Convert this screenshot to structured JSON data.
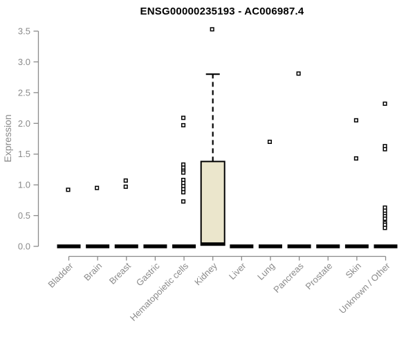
{
  "chart_data": {
    "type": "boxplot",
    "title": "ENSG00000235193 - AC006987.4",
    "ylabel": "Expression",
    "xlabel": "",
    "ylim": [
      0,
      3.5
    ],
    "yticks": [
      "0.0",
      "0.5",
      "1.0",
      "1.5",
      "2.0",
      "2.5",
      "3.0",
      "3.5"
    ],
    "grid": false,
    "legend": "none",
    "categories": [
      "Bladder",
      "Brain",
      "Breast",
      "Gastric",
      "Hematopoietic cells",
      "Kidney",
      "Liver",
      "Lung",
      "Pancreas",
      "Prostate",
      "Skin",
      "Unknown / Other"
    ],
    "series": [
      {
        "category": "Bladder",
        "median": 0,
        "q1": 0,
        "q3": 0,
        "whisker_low": 0,
        "whisker_high": 0,
        "outliers": [],
        "points": [
          0.92
        ]
      },
      {
        "category": "Brain",
        "median": 0,
        "q1": 0,
        "q3": 0,
        "whisker_low": 0,
        "whisker_high": 0,
        "outliers": [],
        "points": [
          0.95
        ]
      },
      {
        "category": "Breast",
        "median": 0,
        "q1": 0,
        "q3": 0,
        "whisker_low": 0,
        "whisker_high": 0,
        "outliers": [],
        "points": [
          1.07,
          0.97
        ]
      },
      {
        "category": "Gastric",
        "median": 0,
        "q1": 0,
        "q3": 0,
        "whisker_low": 0,
        "whisker_high": 0,
        "outliers": [],
        "points": []
      },
      {
        "category": "Hematopoietic cells",
        "median": 0,
        "q1": 0,
        "q3": 0,
        "whisker_low": 0,
        "whisker_high": 0,
        "outliers": [],
        "points": [
          2.09,
          1.97,
          1.33,
          1.28,
          1.23,
          1.2,
          1.08,
          1.03,
          0.98,
          0.93,
          0.88,
          0.73
        ]
      },
      {
        "category": "Kidney",
        "median": 0.04,
        "q1": 0.02,
        "q3": 1.38,
        "whisker_low": 0.02,
        "whisker_high": 2.8,
        "outliers": [
          3.53
        ],
        "points": []
      },
      {
        "category": "Liver",
        "median": 0,
        "q1": 0,
        "q3": 0,
        "whisker_low": 0,
        "whisker_high": 0,
        "outliers": [],
        "points": []
      },
      {
        "category": "Lung",
        "median": 0,
        "q1": 0,
        "q3": 0,
        "whisker_low": 0,
        "whisker_high": 0,
        "outliers": [],
        "points": [
          1.7
        ]
      },
      {
        "category": "Pancreas",
        "median": 0,
        "q1": 0,
        "q3": 0,
        "whisker_low": 0,
        "whisker_high": 0,
        "outliers": [],
        "points": [
          2.81
        ]
      },
      {
        "category": "Prostate",
        "median": 0,
        "q1": 0,
        "q3": 0,
        "whisker_low": 0,
        "whisker_high": 0,
        "outliers": [],
        "points": []
      },
      {
        "category": "Skin",
        "median": 0,
        "q1": 0,
        "q3": 0,
        "whisker_low": 0,
        "whisker_high": 0,
        "outliers": [],
        "points": [
          2.05,
          1.43
        ]
      },
      {
        "category": "Unknown / Other",
        "median": 0,
        "q1": 0,
        "q3": 0,
        "whisker_low": 0,
        "whisker_high": 0,
        "outliers": [],
        "points": [
          2.32,
          1.63,
          1.58,
          0.63,
          0.58,
          0.53,
          0.49,
          0.45,
          0.38,
          0.35,
          0.3
        ]
      }
    ],
    "colors": {
      "box_fill": "#EBE6CC",
      "box_stroke": "#000000",
      "whisker": "#000000",
      "median": "#000000",
      "point_fill": "#FFFFFF",
      "point_stroke": "#000000",
      "axis": "#8A8A8A",
      "tick_label": "#8A8A8A",
      "title": "#000000"
    }
  }
}
